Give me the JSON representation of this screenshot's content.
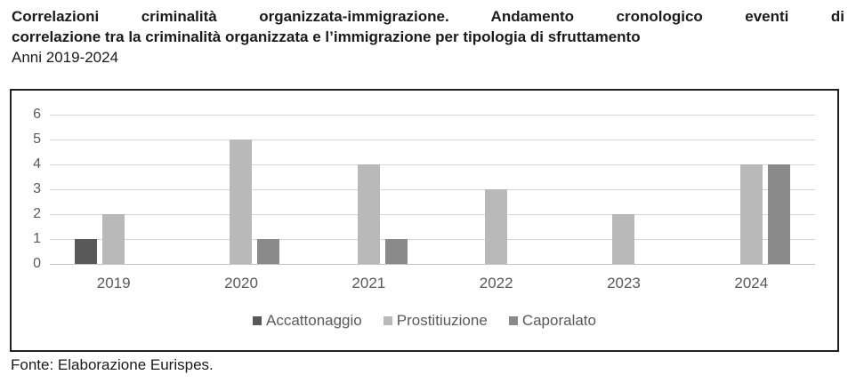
{
  "title": {
    "line1": "Correlazioni criminalità organizzata-immigrazione. Andamento cronologico eventi di",
    "line2": "correlazione tra la criminalità organizzata e l’immigrazione per tipologia di sfruttamento",
    "line3": "Anni 2019-2024"
  },
  "footer": "Fonte: Elaborazione Eurispes.",
  "colors": {
    "accattonaggio": "#595959",
    "prostitiuzione": "#b9b9b9",
    "caporalato": "#8a8a8a",
    "gridline": "#d6d6d6",
    "axis_text": "#595959",
    "border": "#1f1f1f"
  },
  "chart_data": {
    "type": "bar",
    "categories": [
      "2019",
      "2020",
      "2021",
      "2022",
      "2023",
      "2024"
    ],
    "series": [
      {
        "name": "Accattonaggio",
        "color": "#595959",
        "values": [
          1,
          0,
          0,
          0,
          0,
          0
        ]
      },
      {
        "name": "Prostitiuzione",
        "color": "#b9b9b9",
        "values": [
          2,
          5,
          4,
          3,
          2,
          4
        ]
      },
      {
        "name": "Caporalato",
        "color": "#8a8a8a",
        "values": [
          0,
          1,
          1,
          0,
          0,
          4
        ]
      }
    ],
    "title": "",
    "xlabel": "",
    "ylabel": "",
    "ylim": [
      0,
      6
    ],
    "yticks": [
      0,
      1,
      2,
      3,
      4,
      5,
      6
    ],
    "grid": true,
    "legend_position": "bottom"
  }
}
